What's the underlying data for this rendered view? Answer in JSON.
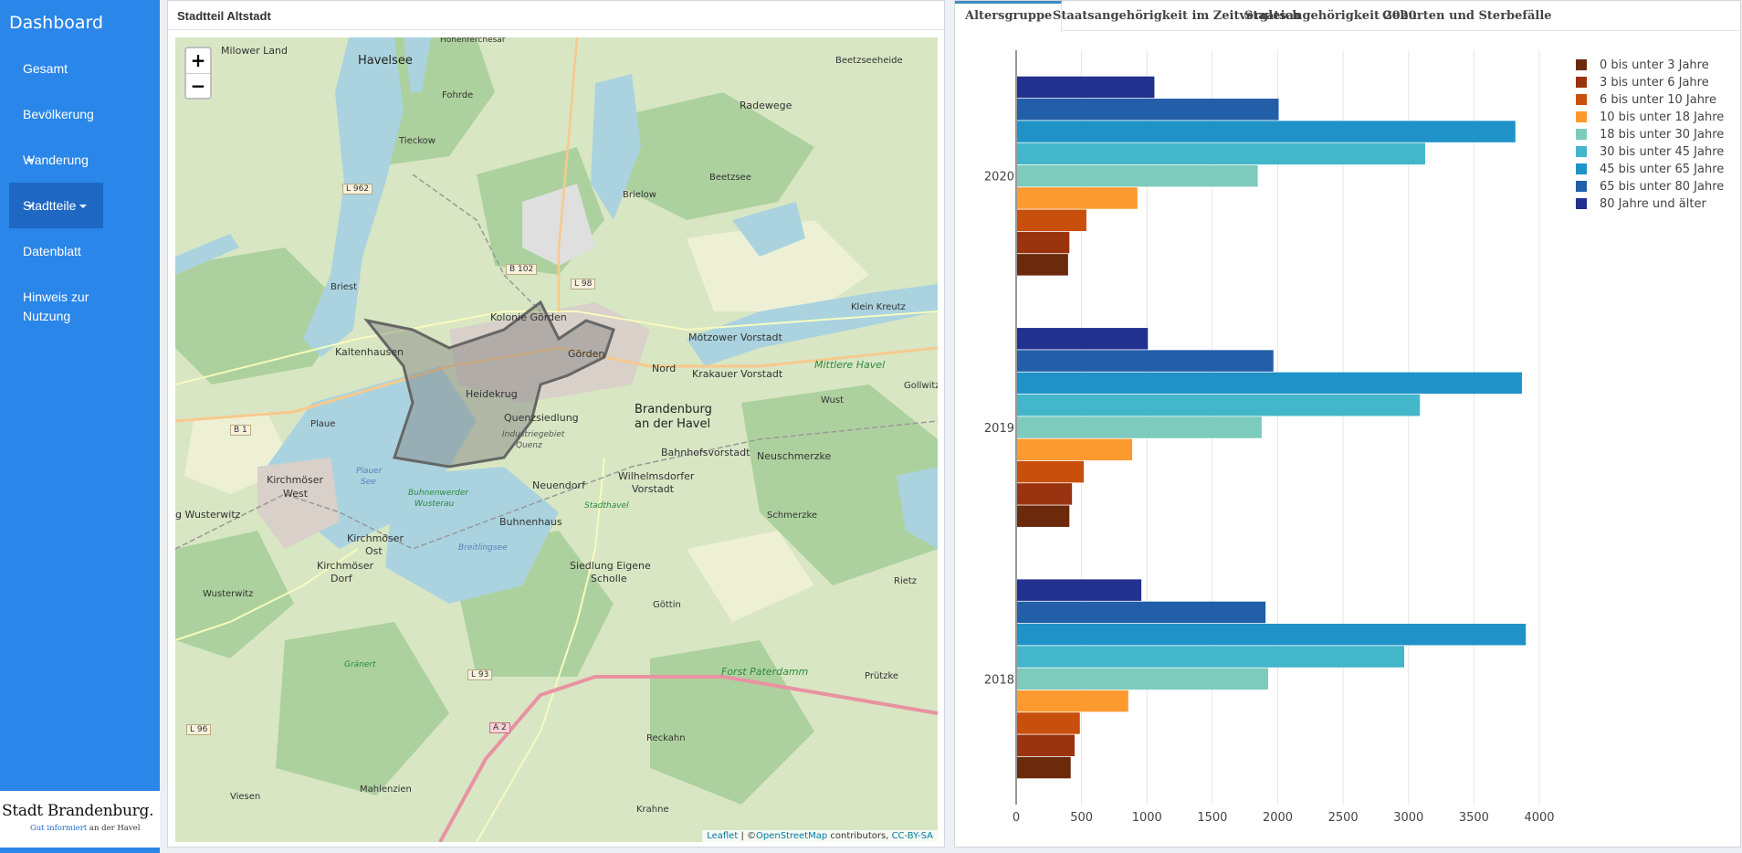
{
  "sidebar": {
    "brand": "Dashboard",
    "items": [
      {
        "label": "Gesamt"
      },
      {
        "label": "Bevölkerung"
      },
      {
        "label": "Wanderung"
      },
      {
        "label": "Stadtteile"
      },
      {
        "label": "Datenblatt"
      },
      {
        "label": "Hinweis zur Nutzung"
      }
    ],
    "logo_main": "Stadt Brandenburg.",
    "logo_sub_blue": "Gut informiert",
    "logo_sub_dark": "an der Havel"
  },
  "map_panel": {
    "title": "Stadtteil Altstadt",
    "zoom_in": "+",
    "zoom_out": "−",
    "attribution": {
      "leaflet": "Leaflet",
      "sep": " | ©",
      "osm": "OpenStreetMap",
      "contrib": " contributors, ",
      "license": "CC-BY-SA"
    },
    "labels": {
      "milower_land": "Milower Land",
      "havelsee": "Havelsee",
      "hohenferchesar": "Hohenferchesar",
      "beetzseeheide": "Beetzseeheide",
      "fohrde": "Fohrde",
      "radewege": "Radewege",
      "tieckow": "Tieckow",
      "beetzsee": "Beetzsee",
      "brielow": "Brielow",
      "briest": "Briest",
      "kolonie_gorden": "Kolonie Görden",
      "klein_kreutz": "Klein Kreutz",
      "kaltenhausen": "Kaltenhausen",
      "gorden": "Görden",
      "motzower_vorstadt": "Mötzower Vorstadt",
      "nord": "Nord",
      "krakauer_vorstadt": "Krakauer Vorstadt",
      "mittlere_havel": "Mittlere Havel",
      "gollwitz": "Gollwitz",
      "heidekrug": "Heidekrug",
      "wust": "Wust",
      "quenzsiedlung": "Quenzsiedlung",
      "brandenburg_1": "Brandenburg",
      "brandenburg_2": "an der Havel",
      "plaue": "Plaue",
      "industriegebiet": "Industriegebiet",
      "quenz": "Quenz",
      "bahnhofsvorstadt": "Bahnhofsvorstadt",
      "neuschmerzke": "Neuschmerzke",
      "kirchmoser_west_1": "Kirchmöser",
      "kirchmoser_west_2": "West",
      "plauer_see_1": "Plauer",
      "plauer_see_2": "See",
      "neuendorf": "Neuendorf",
      "wilhelmsdorfer_1": "Wilhelmsdorfer",
      "wilhelmsdorfer_2": "Vorstadt",
      "buhnenwerder_1": "Buhnenwerder",
      "buhnenwerder_2": "Wusterau",
      "stadthavel": "Stadthavel",
      "wusterwitz_left": "g Wusterwitz",
      "buhnenhaus": "Buhnenhaus",
      "schmerzke": "Schmerzke",
      "kirchmoser_ost_1": "Kirchmöser",
      "kirchmoser_ost_2": "Ost",
      "breitlingsee": "Breitlingsee",
      "kirchmoser_dorf_1": "Kirchmöser",
      "kirchmoser_dorf_2": "Dorf",
      "siedlung_1": "Siedlung Eigene",
      "siedlung_2": "Scholle",
      "rietz": "Rietz",
      "wusterwitz": "Wusterwitz",
      "gottin": "Göttin",
      "granert": "Gränert",
      "forst_paterdamm": "Forst Paterdamm",
      "prutzke": "Prützke",
      "reckahn": "Reckahn",
      "viesen": "Viesen",
      "mahlenzien": "Mahlenzien",
      "krahne": "Krahne"
    },
    "roads": {
      "l962": "L 962",
      "b102": "B 102",
      "l98": "L 98",
      "b1": "B 1",
      "l93": "L 93",
      "a2": "A 2",
      "l96": "L 96"
    }
  },
  "chart_panel": {
    "tabs": [
      {
        "label": "Altersgruppe",
        "active": true
      },
      {
        "label": "Staatsangehörigkeit im Zeitvergleich",
        "active": false
      },
      {
        "label": "Staatsangehörigkeit 2020",
        "active": false
      },
      {
        "label": "Geburten und Sterbefälle",
        "active": false
      }
    ]
  },
  "chart_data": {
    "type": "bar",
    "orientation": "horizontal",
    "title": "",
    "xlabel": "",
    "ylabel": "",
    "categories": [
      "2020",
      "2019",
      "2018"
    ],
    "xlim": [
      0,
      4000
    ],
    "xticks": [
      0,
      500,
      1000,
      1500,
      2000,
      2500,
      3000,
      3500,
      4000
    ],
    "grid": true,
    "legend_position": "top-right",
    "series": [
      {
        "name": "0 bis unter 3 Jahre",
        "color": "#6b2a0c",
        "values": [
          390,
          400,
          410
        ]
      },
      {
        "name": "3 bis unter 6 Jahre",
        "color": "#9a3410",
        "values": [
          400,
          420,
          440
        ]
      },
      {
        "name": "6 bis unter 10 Jahre",
        "color": "#c9500c",
        "values": [
          530,
          510,
          480
        ]
      },
      {
        "name": "10 bis unter 18 Jahre",
        "color": "#fd9a2f",
        "values": [
          920,
          880,
          850
        ]
      },
      {
        "name": "18 bis unter 30 Jahre",
        "color": "#7dcbbd",
        "values": [
          1840,
          1870,
          1920
        ]
      },
      {
        "name": "30 bis unter 45 Jahre",
        "color": "#43b6c9",
        "values": [
          3120,
          3080,
          2960
        ]
      },
      {
        "name": "45 bis unter 65 Jahre",
        "color": "#1f93c8",
        "values": [
          3810,
          3860,
          3890
        ]
      },
      {
        "name": "65 bis unter 80 Jahre",
        "color": "#235ea8",
        "values": [
          2000,
          1960,
          1900
        ]
      },
      {
        "name": "80 Jahre und älter",
        "color": "#22318f",
        "values": [
          1050,
          1000,
          950
        ]
      }
    ]
  }
}
